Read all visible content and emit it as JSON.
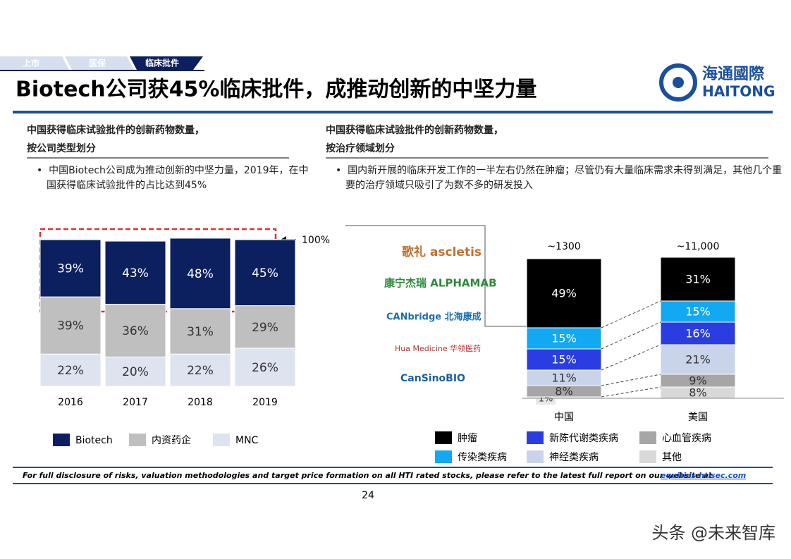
{
  "tabs": [
    "上市",
    "医保",
    "临床批件"
  ],
  "title": "Biotech公司获45%临床批件，成推动创新的中坚力量",
  "logo": {
    "cn": "海通國際",
    "en": "HAITONG"
  },
  "left": {
    "heading": [
      "中国获得临床试验批件的创新药物数量，",
      "按公司类型划分"
    ],
    "bullet": "中国Biotech公司成为推动创新的中坚力量，2019年，在中国获得临床试验批件的占比达到45%"
  },
  "right": {
    "heading": [
      "中国获得临床试验批件的创新药物数量，",
      "按治疗领域划分"
    ],
    "bullet": "国内新开展的临床开发工作的一半左右仍然在肿瘤；尽管仍有大量临床需求未得到满足，其他几个重要的治疗领域只吸引了为数不多的研发投入",
    "companies": [
      "歌礼 ascletis",
      "康宁杰瑞 ALPHAMAB",
      "CANbridge 北海康成",
      "Hua Medicine 华领医药",
      "CanSinoBIO"
    ]
  },
  "chart_data": [
    {
      "type": "bar",
      "stacked": true,
      "categories": [
        "2016",
        "2017",
        "2018",
        "2019"
      ],
      "ylim": [
        0,
        100
      ],
      "annotation": "100%",
      "series": [
        {
          "name": "Biotech",
          "color": "#0c1f5e",
          "values": [
            39,
            43,
            48,
            45
          ],
          "value_labels": [
            "39%",
            "43%",
            "48%",
            "45%"
          ]
        },
        {
          "name": "内资药企",
          "color": "#bfbfbf",
          "values": [
            39,
            36,
            31,
            29
          ],
          "value_labels": [
            "39%",
            "36%",
            "31%",
            "29%"
          ]
        },
        {
          "name": "MNC",
          "color": "#dde3ef",
          "values": [
            22,
            20,
            22,
            26
          ],
          "value_labels": [
            "22%",
            "20%",
            "22%",
            "26%"
          ]
        }
      ]
    },
    {
      "type": "bar",
      "stacked": true,
      "categories": [
        "中国",
        "美国"
      ],
      "ylim": [
        0,
        100
      ],
      "annotations": [
        "~1300",
        "~11,000"
      ],
      "series": [
        {
          "name": "肿瘤",
          "color": "#000000",
          "values": [
            49,
            31
          ],
          "value_labels": [
            "49%",
            "31%"
          ]
        },
        {
          "name": "传染类疾病",
          "color": "#13a8f2",
          "values": [
            15,
            15
          ],
          "value_labels": [
            "15%",
            "15%"
          ]
        },
        {
          "name": "新陈代谢类疾病",
          "color": "#2a3de0",
          "values": [
            15,
            16
          ],
          "value_labels": [
            "15%",
            "16%"
          ]
        },
        {
          "name": "神经类疾病",
          "color": "#c9d4ea",
          "values": [
            11,
            21
          ],
          "value_labels": [
            "11%",
            "21%"
          ]
        },
        {
          "name": "心血管疾病",
          "color": "#a6a6a6",
          "values": [
            8,
            9
          ],
          "value_labels": [
            "8%",
            "9%"
          ]
        },
        {
          "name": "其他",
          "color": "#d9d9d9",
          "values": [
            1,
            8
          ],
          "value_labels": [
            "1%",
            "8%"
          ]
        }
      ]
    }
  ],
  "footer": {
    "disclaimer": "For full disclosure of risks, valuation methodologies and target price formation on all HTI rated stocks, please refer to the latest full report on our website at",
    "link": "equities.htisec.com",
    "page": "24"
  },
  "watermark": "头条 @未来智库"
}
